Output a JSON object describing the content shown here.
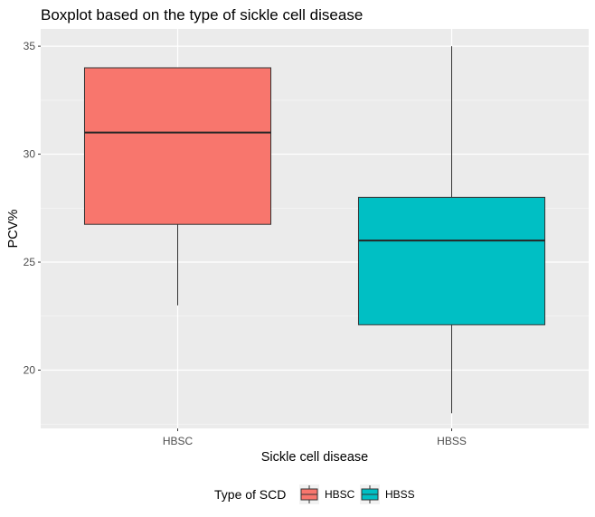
{
  "chart_data": {
    "type": "boxplot",
    "title": "Boxplot based on the type of sickle cell disease",
    "xlabel": "Sickle cell disease",
    "ylabel": "PCV%",
    "categories": [
      "HBSC",
      "HBSS"
    ],
    "boxes": [
      {
        "category": "HBSC",
        "min": 23,
        "q1": 26.75,
        "median": 31,
        "q3": 34,
        "max": 34,
        "color": "#f8766d"
      },
      {
        "category": "HBSS",
        "min": 18,
        "q1": 22.1,
        "median": 26,
        "q3": 28,
        "max": 35,
        "color": "#00bfc4"
      }
    ],
    "ylim": [
      17.3,
      35.8
    ],
    "yticks": [
      20,
      25,
      30,
      35
    ],
    "grid": true,
    "panel_background": "#ebebeb",
    "legend": {
      "title": "Type of SCD",
      "position": "bottom",
      "items": [
        {
          "label": "HBSC",
          "color": "#f8766d"
        },
        {
          "label": "HBSS",
          "color": "#00bfc4"
        }
      ]
    }
  }
}
